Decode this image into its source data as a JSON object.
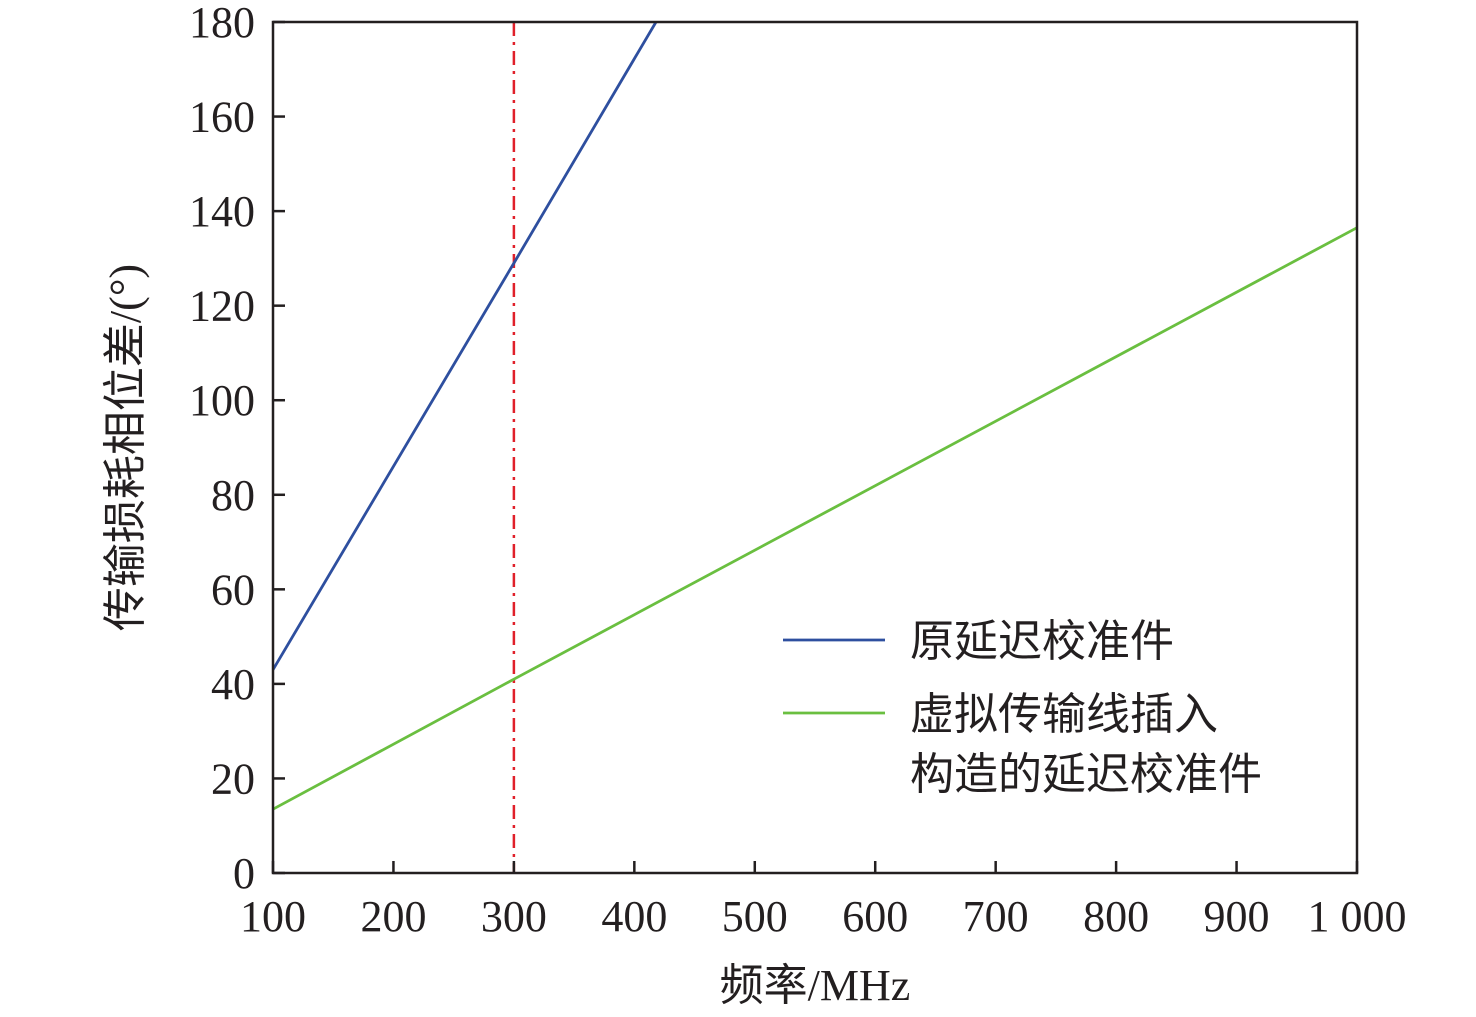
{
  "chart_data": {
    "type": "line",
    "xlabel": "频率/MHz",
    "ylabel": "传输损耗相位差/(°)",
    "xlim": [
      100,
      1000
    ],
    "ylim": [
      0,
      180
    ],
    "x_ticks": [
      100,
      200,
      300,
      400,
      500,
      600,
      700,
      800,
      900,
      1000
    ],
    "x_tick_labels": [
      "100",
      "200",
      "300",
      "400",
      "500",
      "600",
      "700",
      "800",
      "900",
      "1 000"
    ],
    "y_ticks": [
      0,
      20,
      40,
      60,
      80,
      100,
      120,
      140,
      160,
      180
    ],
    "y_tick_labels": [
      "0",
      "20",
      "40",
      "60",
      "80",
      "100",
      "120",
      "140",
      "160",
      "180"
    ],
    "grid": false,
    "legend_position": "right",
    "series": [
      {
        "name": "原延迟校准件",
        "color": "#2e4f9f",
        "x": [
          100,
          300,
          418
        ],
        "y": [
          43,
          129,
          180
        ]
      },
      {
        "name": "虚拟传输线插入构造的延迟校准件",
        "name_lines": [
          "虚拟传输线插入",
          "构造的延迟校准件"
        ],
        "color": "#6abf40",
        "x": [
          100,
          300,
          1000
        ],
        "y": [
          13.5,
          41,
          136.5
        ]
      }
    ],
    "reference_lines": [
      {
        "axis": "x",
        "value": 300,
        "style": "dash-dot",
        "color": "#e0202a"
      }
    ]
  }
}
